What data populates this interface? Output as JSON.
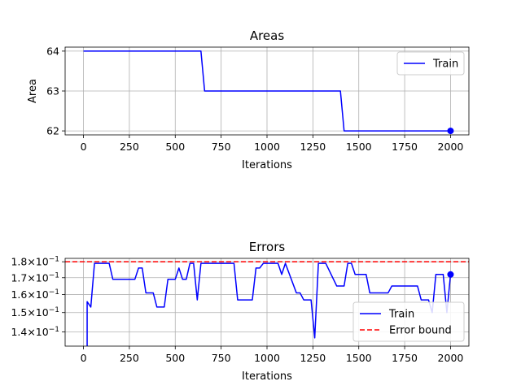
{
  "chart_data": [
    {
      "type": "line",
      "title": "Areas",
      "xlabel": "Iterations",
      "ylabel": "Area",
      "xlim": [
        -100,
        2100
      ],
      "ylim": [
        61.9,
        64.1
      ],
      "x_ticks": [
        0,
        250,
        500,
        750,
        1000,
        1250,
        1500,
        1750,
        2000
      ],
      "y_ticks": [
        62,
        63,
        64
      ],
      "y_tick_labels": [
        "62",
        "63",
        "64"
      ],
      "grid": true,
      "legend_position": "top-right",
      "series": [
        {
          "name": "Train",
          "color": "#0000ff",
          "style": "solid",
          "x": [
            0,
            640,
            660,
            1400,
            1420,
            2000
          ],
          "y": [
            64,
            64,
            63,
            63,
            62,
            62
          ],
          "end_marker": true
        }
      ]
    },
    {
      "type": "line",
      "title": "Errors",
      "xlabel": "Iterations",
      "ylabel": "",
      "scale": "log",
      "xlim": [
        -100,
        2100
      ],
      "ylim": [
        0.133,
        0.1822
      ],
      "x_ticks": [
        0,
        250,
        500,
        750,
        1000,
        1250,
        1500,
        1750,
        2000
      ],
      "y_ticks": [
        0.14,
        0.15,
        0.16,
        0.17,
        0.18
      ],
      "y_tick_labels": [
        {
          "mant": "1.4",
          "exp": "−1"
        },
        {
          "mant": "1.5",
          "exp": "−1"
        },
        {
          "mant": "1.6",
          "exp": "−1"
        },
        {
          "mant": "1.7",
          "exp": "−1"
        },
        {
          "mant": "1.8",
          "exp": "−1"
        }
      ],
      "grid": true,
      "legend_position": "lower-right",
      "series": [
        {
          "name": "Train",
          "color": "#0000ff",
          "style": "solid",
          "x": [
            20,
            20,
            40,
            60,
            100,
            140,
            160,
            180,
            240,
            280,
            300,
            320,
            340,
            360,
            380,
            400,
            440,
            460,
            480,
            500,
            520,
            540,
            560,
            580,
            600,
            620,
            640,
            660,
            700,
            760,
            800,
            820,
            840,
            880,
            920,
            940,
            960,
            980,
            1000,
            1040,
            1060,
            1080,
            1100,
            1160,
            1180,
            1200,
            1240,
            1260,
            1280,
            1320,
            1380,
            1420,
            1440,
            1460,
            1480,
            1500,
            1520,
            1540,
            1560,
            1580,
            1620,
            1660,
            1680,
            1700,
            1720,
            1760,
            1820,
            1840,
            1880,
            1900,
            1920,
            1960,
            1980,
            2000
          ],
          "y": [
            0.133,
            0.156,
            0.153,
            0.179,
            0.179,
            0.179,
            0.169,
            0.169,
            0.169,
            0.169,
            0.176,
            0.176,
            0.161,
            0.161,
            0.161,
            0.153,
            0.153,
            0.169,
            0.169,
            0.169,
            0.176,
            0.169,
            0.169,
            0.179,
            0.179,
            0.157,
            0.179,
            0.179,
            0.179,
            0.179,
            0.179,
            0.179,
            0.157,
            0.157,
            0.157,
            0.176,
            0.176,
            0.179,
            0.179,
            0.179,
            0.179,
            0.172,
            0.179,
            0.161,
            0.161,
            0.157,
            0.157,
            0.137,
            0.179,
            0.179,
            0.165,
            0.165,
            0.179,
            0.179,
            0.172,
            0.172,
            0.172,
            0.172,
            0.161,
            0.161,
            0.161,
            0.161,
            0.165,
            0.165,
            0.165,
            0.165,
            0.165,
            0.157,
            0.157,
            0.15,
            0.172,
            0.172,
            0.15,
            0.172
          ],
          "end_marker": true
        },
        {
          "name": "Error bound",
          "color": "#ff0000",
          "style": "dashed",
          "y_constant": 0.18
        }
      ]
    }
  ]
}
